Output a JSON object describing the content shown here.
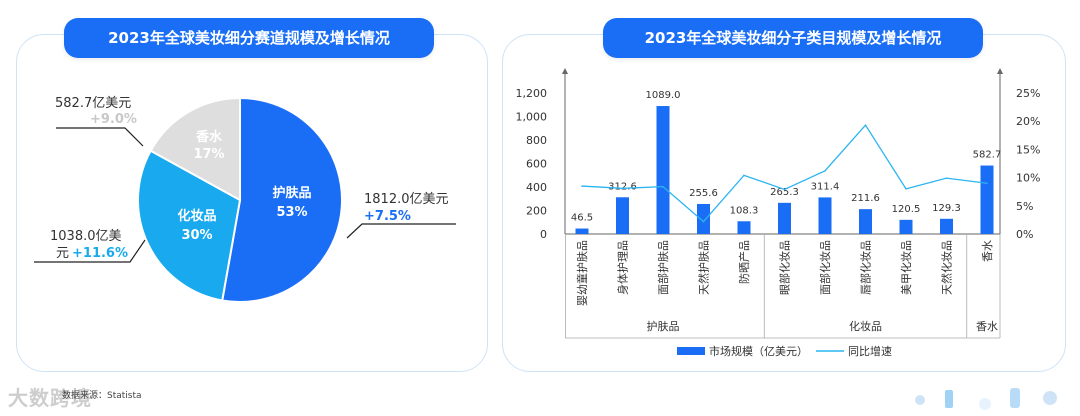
{
  "left_chart": {
    "title": "2023年全球美妆细分赛道规模及增长情况",
    "slices": [
      {
        "name": "护肤品",
        "pct": "53%",
        "value": 1812.0,
        "value_label": "1812.0亿美元",
        "growth": "+7.5%",
        "color": "#1a6ef5",
        "growth_color": "#1a6ef5"
      },
      {
        "name": "化妆品",
        "pct": "30%",
        "value": 1038.0,
        "value_label_line1": "1038.0亿美",
        "value_label_line2": "元",
        "growth": "+11.6%",
        "color": "#19a9ee",
        "growth_color": "#19a9ee"
      },
      {
        "name": "香水",
        "pct": "17%",
        "value": 582.7,
        "value_label": "582.7亿美元",
        "growth": "+9.0%",
        "color": "#dedede",
        "growth_color": "#c8c8c8"
      }
    ]
  },
  "right_chart": {
    "title": "2023年全球美妆细分子类目规模及增长情况"
  },
  "chart_data": {
    "type": "bar",
    "title": "2023年全球美妆细分子类目规模及增长情况",
    "categories": [
      "婴幼童护肤品",
      "身体护理品",
      "面部护肤品",
      "天然护肤品",
      "防晒产品",
      "眼部化妆品",
      "面部化妆品",
      "唇部化妆品",
      "美甲化妆品",
      "天然化妆品",
      "香水"
    ],
    "groups": [
      {
        "name": "护肤品",
        "from": 0,
        "to": 4
      },
      {
        "name": "化妆品",
        "from": 5,
        "to": 9
      },
      {
        "name": "香水",
        "from": 10,
        "to": 10
      }
    ],
    "series": [
      {
        "name": "市场规模（亿美元）",
        "type": "bar",
        "axis": "left",
        "color": "#1a6ef5",
        "values": [
          46.5,
          312.6,
          1089.0,
          255.6,
          108.3,
          265.3,
          311.4,
          211.6,
          120.5,
          129.3,
          582.7
        ],
        "labels": [
          "46.5",
          "312.6",
          "1089.0",
          "255.6",
          "108.3",
          "265.3",
          "311.4",
          "211.6",
          "120.5",
          "129.3",
          "582.7"
        ]
      },
      {
        "name": "同比增速",
        "type": "line",
        "axis": "right",
        "color": "#2bb5f0",
        "values": [
          8.5,
          8.1,
          8.4,
          2.2,
          10.4,
          7.9,
          11.2,
          19.3,
          8.0,
          9.9,
          9.0
        ]
      }
    ],
    "y_left": {
      "min": 0,
      "max": 1200,
      "ticks": [
        "0",
        "200",
        "400",
        "600",
        "800",
        "1,000",
        "1,200"
      ]
    },
    "y_right": {
      "min": 0,
      "max": 25,
      "ticks": [
        "0%",
        "5%",
        "10%",
        "15%",
        "20%",
        "25%"
      ]
    },
    "legend_position": "bottom"
  },
  "footer": {
    "source": "数据来源：Statista",
    "watermark": "大数跨境"
  },
  "colors": {
    "primary": "#1a6ef5",
    "secondary": "#19a9ee",
    "neutral": "#dedede",
    "border": "#cfe3f7"
  }
}
